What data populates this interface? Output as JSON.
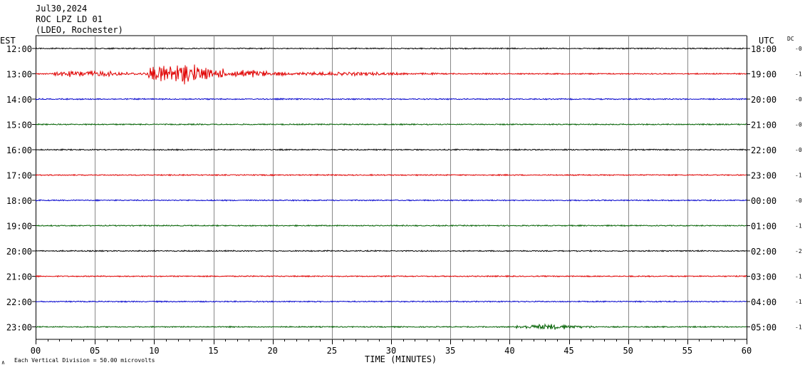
{
  "header": {
    "date": "Jul30,2024",
    "station": "ROC LPZ LD 01",
    "network": "(LDEO, Rochester)"
  },
  "left_axis_label": "EST",
  "right_axis_label": "UTC",
  "dc_label": "DC",
  "x_axis_label": "TIME (MINUTES)",
  "footer_note": "Each Vertical Division =   50.00 microvolts",
  "footer_mark": "∧",
  "colors": [
    "#000000",
    "#e00000",
    "#0000cc",
    "#006000"
  ],
  "chart_data": {
    "type": "line",
    "title": "",
    "xlabel": "TIME (MINUTES)",
    "xlim": [
      0,
      60
    ],
    "x_ticks": [
      "00",
      "05",
      "10",
      "15",
      "20",
      "25",
      "30",
      "35",
      "40",
      "45",
      "50",
      "55",
      "60"
    ],
    "grid": true,
    "rows": [
      {
        "est": "12:00",
        "utc": "18:00",
        "dc": "-0",
        "color": "#000000",
        "events": []
      },
      {
        "est": "13:00",
        "utc": "19:00",
        "dc": "-1",
        "color": "#e00000",
        "events": [
          {
            "start_min": 1.5,
            "end_min": 9.5,
            "amp": 5
          },
          {
            "start_min": 9.5,
            "end_min": 16.0,
            "amp": 16
          },
          {
            "start_min": 16.0,
            "end_min": 21.0,
            "amp": 6
          },
          {
            "start_min": 21.0,
            "end_min": 34.0,
            "amp": 3
          }
        ]
      },
      {
        "est": "14:00",
        "utc": "20:00",
        "dc": "-0",
        "color": "#0000cc",
        "events": []
      },
      {
        "est": "15:00",
        "utc": "21:00",
        "dc": "-0",
        "color": "#006000",
        "events": []
      },
      {
        "est": "16:00",
        "utc": "22:00",
        "dc": "-0",
        "color": "#000000",
        "events": []
      },
      {
        "est": "17:00",
        "utc": "23:00",
        "dc": "-1",
        "color": "#e00000",
        "events": []
      },
      {
        "est": "18:00",
        "utc": "00:00",
        "dc": "-0",
        "color": "#0000cc",
        "events": []
      },
      {
        "est": "19:00",
        "utc": "01:00",
        "dc": "-1",
        "color": "#006000",
        "events": []
      },
      {
        "est": "20:00",
        "utc": "02:00",
        "dc": "-2",
        "color": "#000000",
        "events": []
      },
      {
        "est": "21:00",
        "utc": "03:00",
        "dc": "-1",
        "color": "#e00000",
        "events": []
      },
      {
        "est": "22:00",
        "utc": "04:00",
        "dc": "-1",
        "color": "#0000cc",
        "events": []
      },
      {
        "est": "23:00",
        "utc": "05:00",
        "dc": "-1",
        "color": "#006000",
        "events": [
          {
            "start_min": 40.5,
            "end_min": 47.5,
            "amp": 4
          }
        ]
      }
    ]
  }
}
